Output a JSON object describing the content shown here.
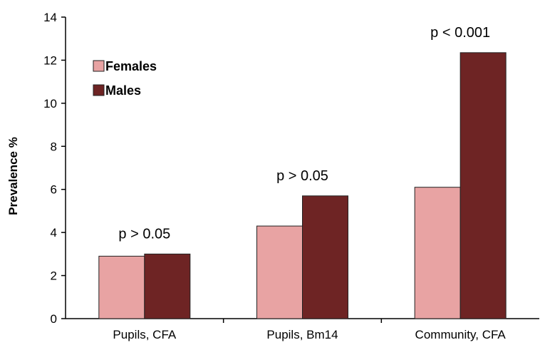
{
  "chart_data": {
    "type": "bar",
    "categories": [
      "Pupils, CFA",
      "Pupils, Bm14",
      "Community, CFA"
    ],
    "series": [
      {
        "name": "Females",
        "values": [
          2.9,
          4.3,
          6.1
        ],
        "color": "#e8a3a3"
      },
      {
        "name": "Males",
        "values": [
          3.0,
          5.7,
          12.35
        ],
        "color": "#6e2424"
      }
    ],
    "annotations": [
      "p > 0.05",
      "p > 0.05",
      "p < 0.001"
    ],
    "ylabel": "Prevalence %",
    "ylim": [
      0,
      14
    ],
    "yticks": [
      0,
      2,
      4,
      6,
      8,
      10,
      12,
      14
    ],
    "grid": false,
    "legend_position": "top-left"
  }
}
